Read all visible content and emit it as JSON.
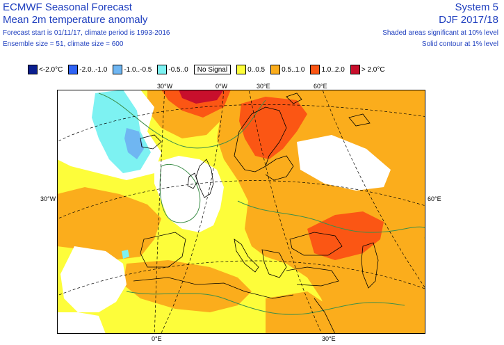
{
  "header": {
    "title": "ECMWF Seasonal Forecast",
    "subtitle": "Mean 2m temperature anomaly",
    "line3": "Forecast start is 01/11/17, climate period is 1993-2016",
    "line4": "Ensemble size = 51, climate size = 600",
    "system": "System 5",
    "season": "DJF 2017/18",
    "note1": "Shaded areas significant at 10% level",
    "note2": "Solid contour at 1% level"
  },
  "legend": [
    {
      "label": "<-2.0°C",
      "color": "#0a1f8f"
    },
    {
      "label": "-2.0..-1.0",
      "color": "#2f63f5"
    },
    {
      "label": "-1.0..-0.5",
      "color": "#6fb6f2"
    },
    {
      "label": "-0.5..0",
      "color": "#7df2f2"
    },
    {
      "label": "No Signal",
      "color": "#ffffff"
    },
    {
      "label": "0..0.5",
      "color": "#fdfd3a"
    },
    {
      "label": "0.5..1.0",
      "color": "#fbad1c"
    },
    {
      "label": "1.0..2.0",
      "color": "#fb5614"
    },
    {
      "label": "> 2.0°C",
      "color": "#c80f2c"
    }
  ],
  "axis_labels": {
    "top": [
      "30°W",
      "0°W",
      "30°E",
      "60°E"
    ],
    "left": "30°W",
    "right": "60°E",
    "bottom": [
      "0°E",
      "30°E"
    ]
  }
}
